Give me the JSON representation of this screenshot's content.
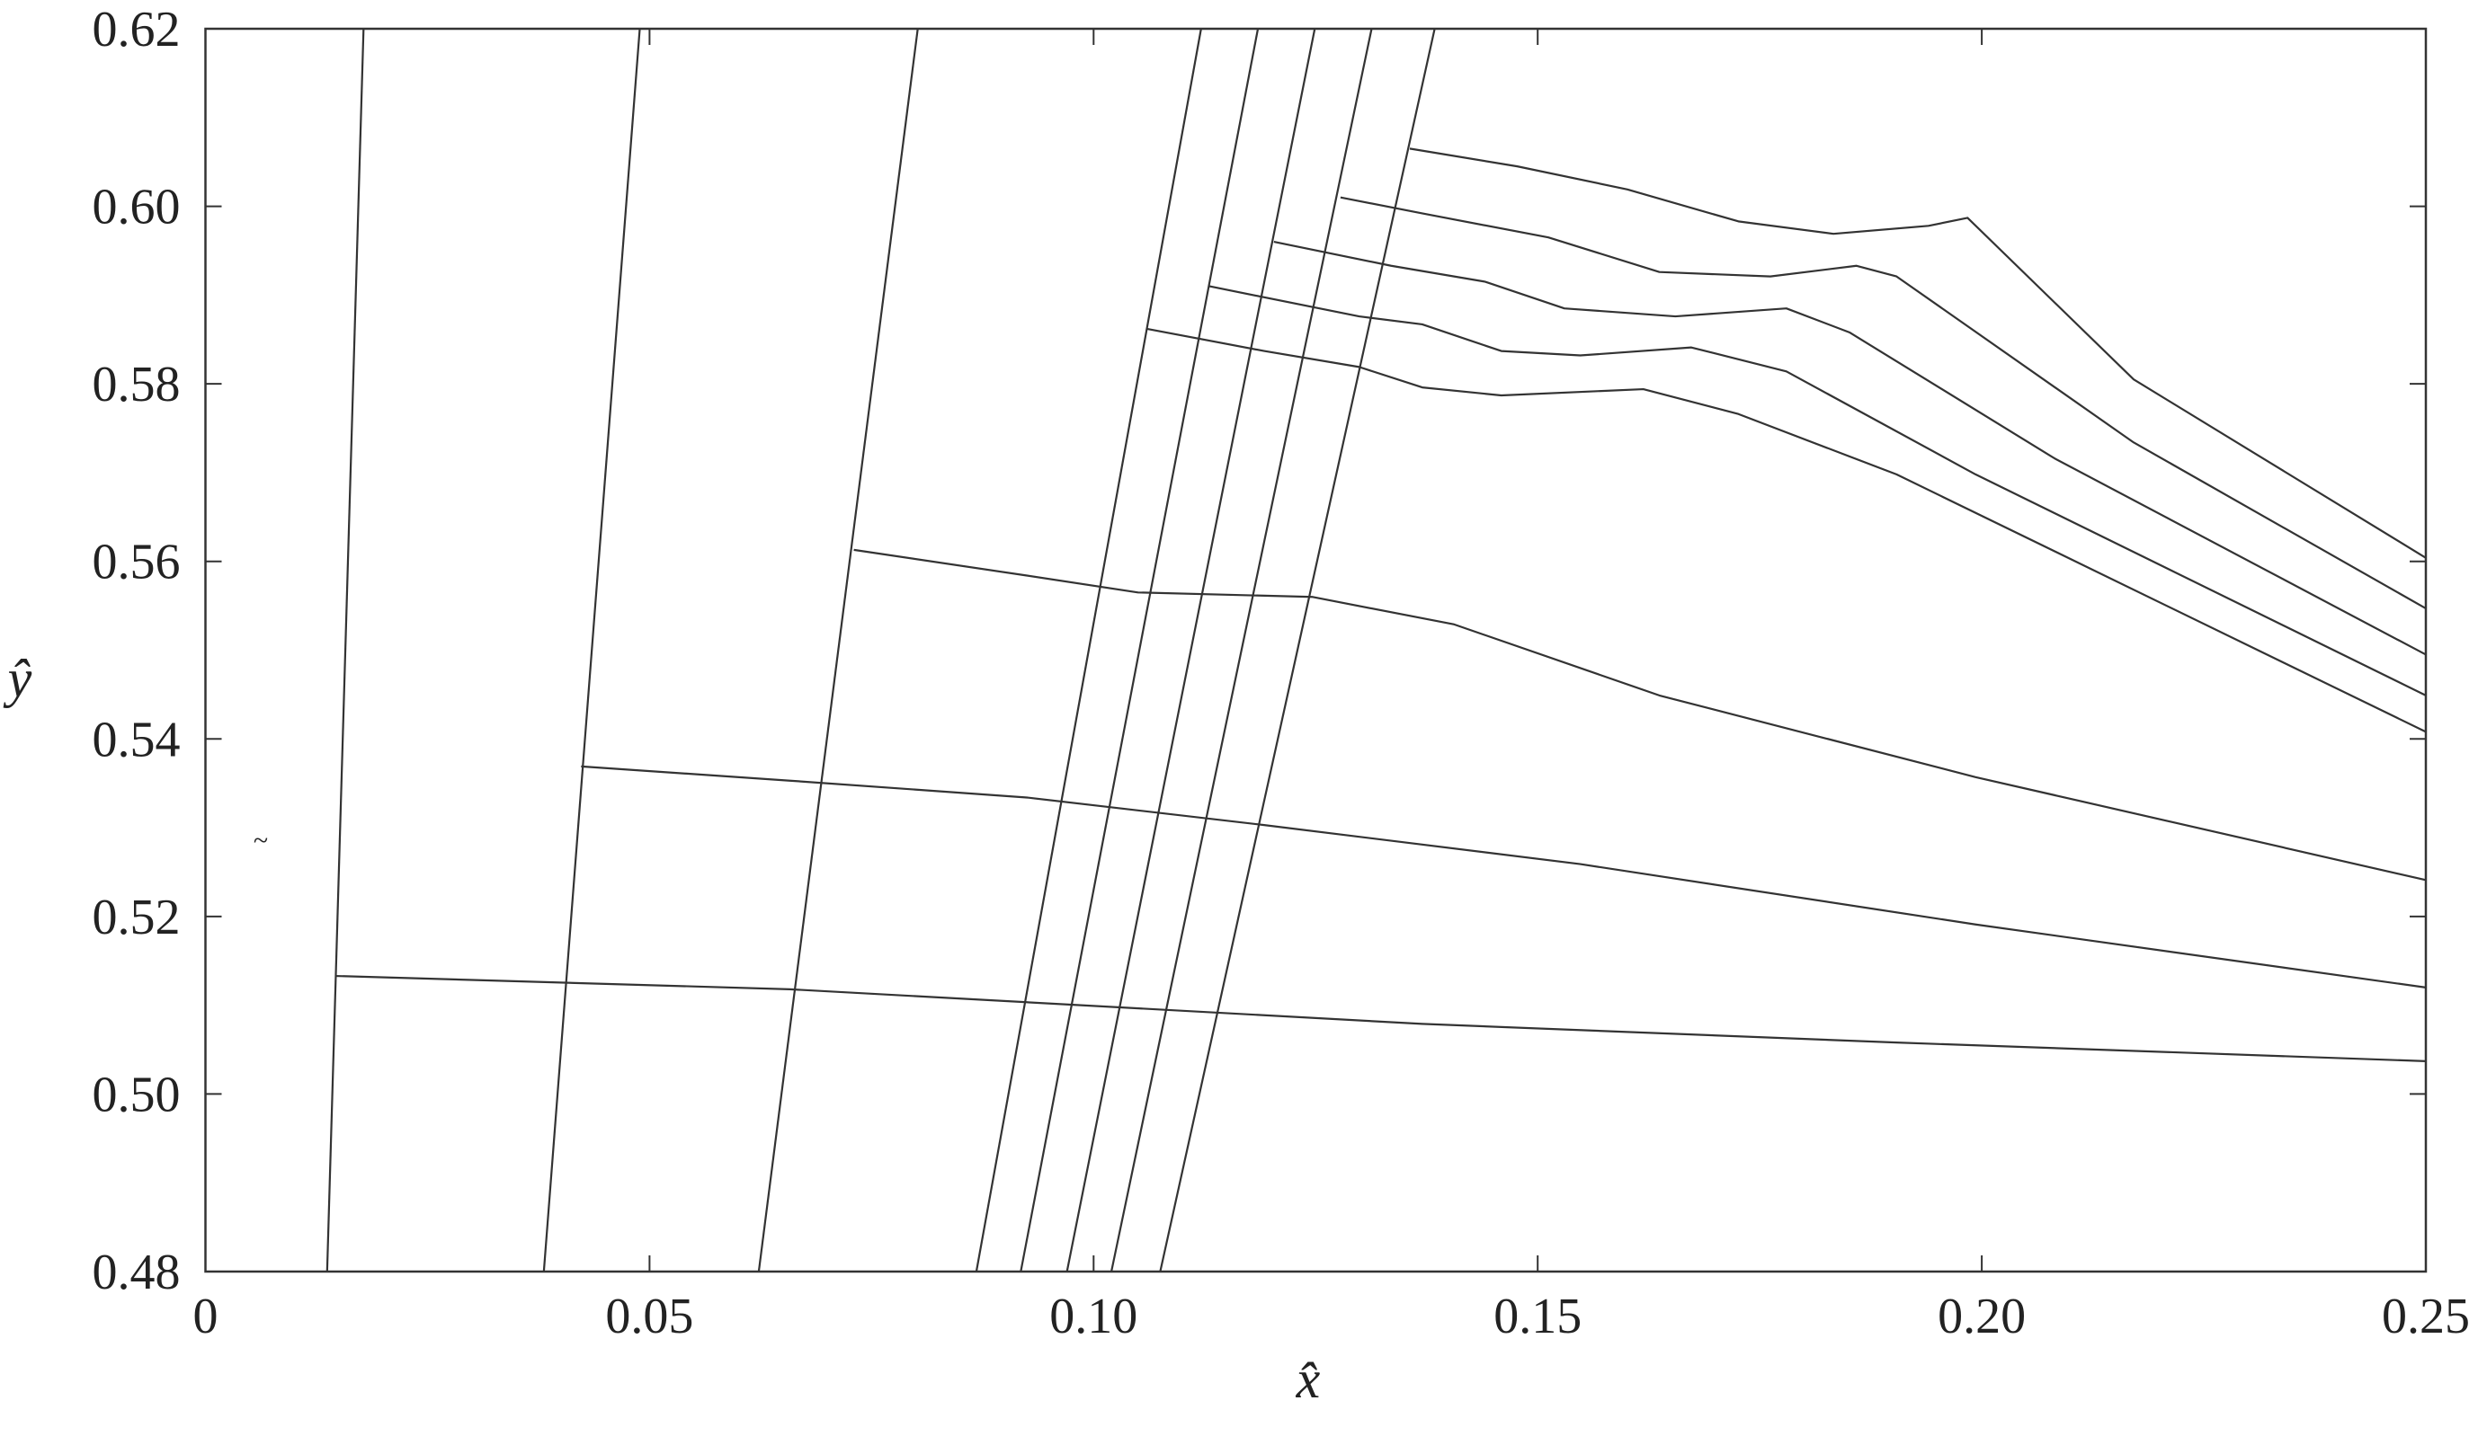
{
  "chart_data": {
    "type": "line",
    "x_label": "x̂",
    "y_label": "ŷ",
    "annotation": "~",
    "xlim": [
      0,
      0.25
    ],
    "ylim": [
      0.48,
      0.62
    ],
    "xticks": [
      0,
      0.05,
      {
        "value": 0.1,
        "label": "0.10"
      },
      0.15,
      {
        "value": 0.2,
        "label": "0.20"
      },
      0.25
    ],
    "yticks": [
      0.48,
      {
        "value": 0.5,
        "label": "0.50"
      },
      0.52,
      0.54,
      0.56,
      0.58,
      {
        "value": 0.6,
        "label": "0.60"
      },
      0.62
    ],
    "grid": false,
    "series": [
      {
        "color": "#333333",
        "x": [
          0.0137,
          0.0178
        ],
        "values": [
          0.48,
          0.62
        ]
      },
      {
        "color": "#333333",
        "x": [
          0.0381,
          0.0489
        ],
        "values": [
          0.48,
          0.62
        ]
      },
      {
        "color": "#333333",
        "x": [
          0.0623,
          0.0802
        ],
        "values": [
          0.48,
          0.62
        ]
      },
      {
        "color": "#333333",
        "x": [
          0.0868,
          0.1121
        ],
        "values": [
          0.48,
          0.62
        ]
      },
      {
        "color": "#333333",
        "x": [
          0.0918,
          0.1185
        ],
        "values": [
          0.48,
          0.62
        ]
      },
      {
        "color": "#333333",
        "x": [
          0.097,
          0.1249
        ],
        "values": [
          0.48,
          0.62
        ]
      },
      {
        "color": "#333333",
        "x": [
          0.102,
          0.1313
        ],
        "values": [
          0.48,
          0.62
        ]
      },
      {
        "color": "#333333",
        "x": [
          0.1075,
          0.1384
        ],
        "values": [
          0.48,
          0.62
        ]
      },
      {
        "color": "#333333",
        "x": [
          0.0146,
          0.0658,
          0.137,
          0.1904,
          0.25
        ],
        "values": [
          0.5133,
          0.5118,
          0.5079,
          0.5058,
          0.5037
        ]
      },
      {
        "color": "#333333",
        "x": [
          0.0423,
          0.0658,
          0.0925,
          0.1192,
          0.1548,
          0.1993,
          0.25
        ],
        "values": [
          0.5369,
          0.5353,
          0.5334,
          0.5303,
          0.5259,
          0.5191,
          0.512
        ]
      },
      {
        "color": "#333333",
        "x": [
          0.073,
          0.0925,
          0.105,
          0.1246,
          0.1406,
          0.1637,
          0.1993,
          0.25
        ],
        "values": [
          0.5613,
          0.5584,
          0.5565,
          0.556,
          0.5529,
          0.5449,
          0.5357,
          0.5241
        ]
      },
      {
        "color": "#333333",
        "x": [
          0.106,
          0.1192,
          0.1299,
          0.137,
          0.1459,
          0.1619,
          0.1726,
          0.1904,
          0.25
        ],
        "values": [
          0.5862,
          0.5837,
          0.5819,
          0.5796,
          0.5787,
          0.5794,
          0.5766,
          0.5698,
          0.5408
        ]
      },
      {
        "color": "#333333",
        "x": [
          0.113,
          0.1299,
          0.137,
          0.1459,
          0.1548,
          0.1673,
          0.178,
          0.1993,
          0.25
        ],
        "values": [
          0.591,
          0.5876,
          0.5867,
          0.5837,
          0.5832,
          0.5841,
          0.5814,
          0.5698,
          0.5449
        ]
      },
      {
        "color": "#333333",
        "x": [
          0.1203,
          0.1335,
          0.1441,
          0.153,
          0.1655,
          0.178,
          0.1851,
          0.2082,
          0.25
        ],
        "values": [
          0.596,
          0.5933,
          0.5915,
          0.5885,
          0.5876,
          0.5885,
          0.5858,
          0.5716,
          0.5495
        ]
      },
      {
        "color": "#333333",
        "x": [
          0.1278,
          0.137,
          0.1512,
          0.1637,
          0.1762,
          0.1859,
          0.1904,
          0.2171,
          0.25
        ],
        "values": [
          0.601,
          0.5992,
          0.5965,
          0.5926,
          0.5921,
          0.5933,
          0.5921,
          0.5734,
          0.5547
        ]
      },
      {
        "color": "#333333",
        "x": [
          0.1356,
          0.1477,
          0.1601,
          0.1726,
          0.1833,
          0.194,
          0.1984,
          0.2171,
          0.25
        ],
        "values": [
          0.6065,
          0.6045,
          0.6019,
          0.5983,
          0.5969,
          0.5978,
          0.5987,
          0.5805,
          0.5604
        ]
      }
    ]
  }
}
